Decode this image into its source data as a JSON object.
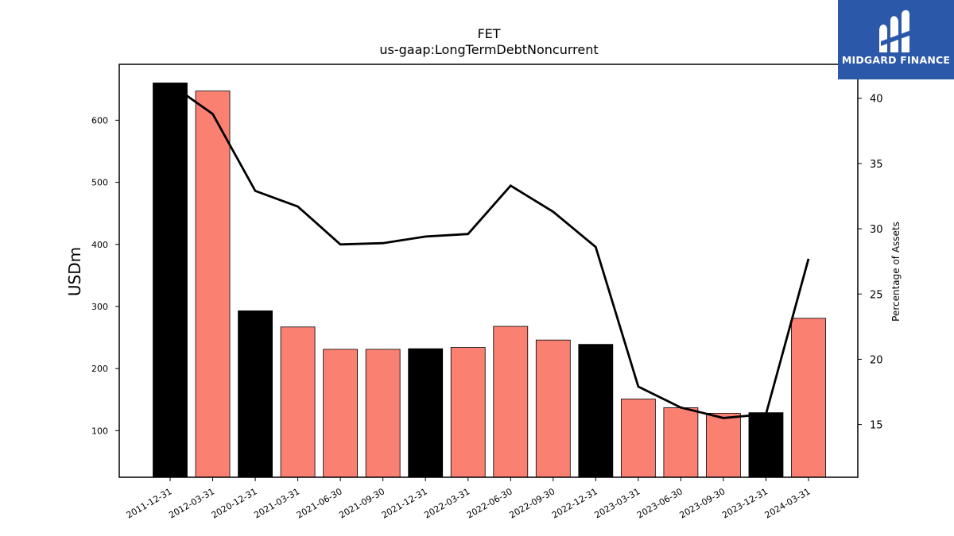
{
  "logo": {
    "text": "MIDGARD FINANCE",
    "icon": "midgard-finance-logo-icon",
    "color": "#2b58a8"
  },
  "chart_data": {
    "type": "bar",
    "title": "FET",
    "subtitle": "us-gaap:LongTermDebtNoncurrent",
    "ylabel": "USDm",
    "ylabel_right": "Percentage of Assets",
    "categories": [
      "2011-12-31",
      "2012-03-31",
      "2020-12-31",
      "2021-03-31",
      "2021-06-30",
      "2021-09-30",
      "2021-12-31",
      "2022-03-31",
      "2022-06-30",
      "2022-09-30",
      "2022-12-31",
      "2023-03-31",
      "2023-06-30",
      "2023-09-30",
      "2023-12-31",
      "2024-03-31"
    ],
    "series": [
      {
        "type": "bar",
        "values": [
          660,
          647,
          293,
          267,
          231,
          231,
          232,
          234,
          268,
          246,
          239,
          151,
          137,
          128,
          129,
          281
        ],
        "colors": [
          "#000000",
          "#fa8072",
          "#000000",
          "#fa8072",
          "#fa8072",
          "#fa8072",
          "#000000",
          "#fa8072",
          "#fa8072",
          "#fa8072",
          "#000000",
          "#fa8072",
          "#fa8072",
          "#fa8072",
          "#000000",
          "#fa8072"
        ]
      },
      {
        "type": "line",
        "axis": "right",
        "values": [
          41.1,
          38.8,
          32.9,
          31.7,
          28.8,
          28.9,
          29.4,
          29.6,
          33.3,
          31.3,
          28.6,
          17.9,
          16.3,
          15.5,
          15.8,
          27.7
        ]
      }
    ],
    "ylim": [
      25,
      690
    ],
    "ylim_right": [
      10.96,
      42.6
    ],
    "yticks": [
      100,
      200,
      300,
      400,
      500,
      600
    ],
    "yticks_right": [
      15,
      20,
      25,
      30,
      35,
      40
    ],
    "colors": {
      "annual": "#000000",
      "quarterly": "#fa8072",
      "line": "#000000"
    },
    "grid": false
  }
}
